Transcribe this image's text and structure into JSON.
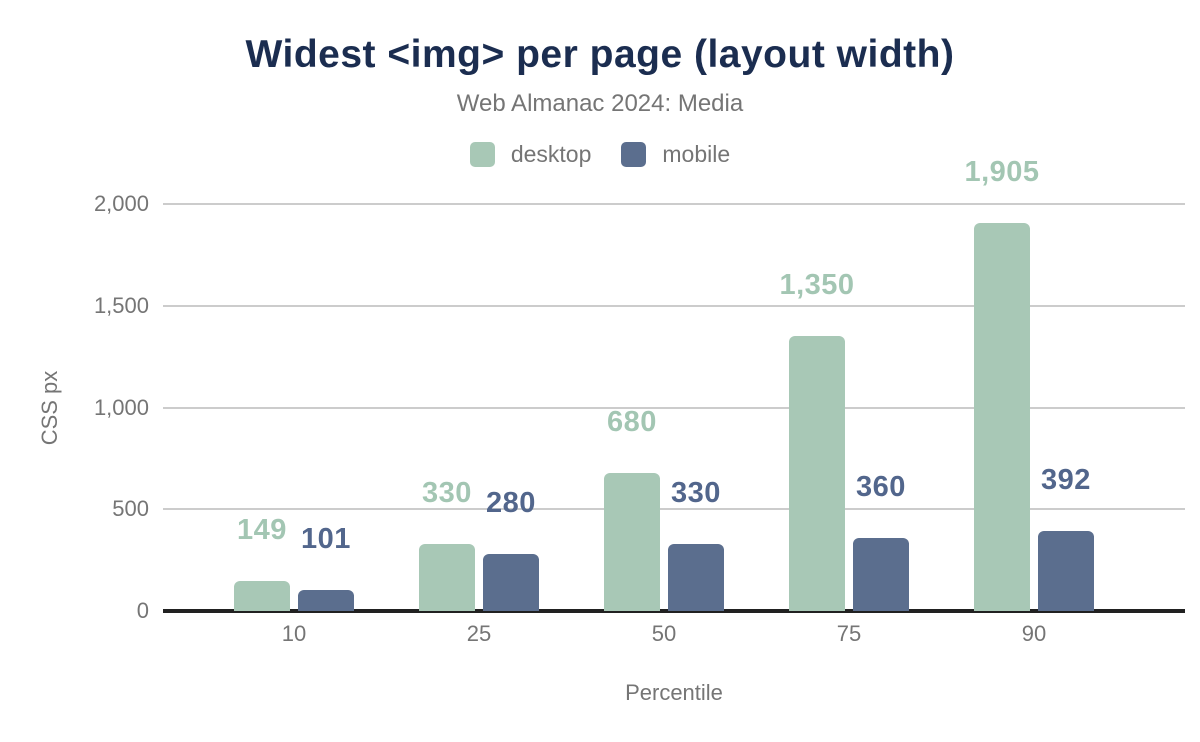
{
  "title": "Widest <img> per page (layout width)",
  "subtitle": "Web Almanac 2024: Media",
  "legend": [
    {
      "label": "desktop",
      "color": "#a8c8b6"
    },
    {
      "label": "mobile",
      "color": "#5b6e8e"
    }
  ],
  "chart_data": {
    "type": "bar",
    "title": "Widest <img> per page (layout width)",
    "subtitle": "Web Almanac 2024: Media",
    "categories": [
      "10",
      "25",
      "50",
      "75",
      "90"
    ],
    "series": [
      {
        "name": "desktop",
        "color": "#a8c8b6",
        "label_color": "#a3c6b3",
        "values": [
          149,
          330,
          680,
          1350,
          1905
        ],
        "labels": [
          "149",
          "330",
          "680",
          "1,350",
          "1,905"
        ]
      },
      {
        "name": "mobile",
        "color": "#5b6e8e",
        "label_color": "#52668c",
        "values": [
          101,
          280,
          330,
          360,
          392
        ],
        "labels": [
          "101",
          "280",
          "330",
          "360",
          "392"
        ]
      }
    ],
    "xlabel": "Percentile",
    "ylabel": "CSS px",
    "ylim": [
      0,
      2000
    ],
    "yticks": [
      0,
      500,
      1000,
      1500,
      2000
    ],
    "ytick_labels": [
      "0",
      "500",
      "1,000",
      "1,500",
      "2,000"
    ],
    "grid": true,
    "legend_position": "top"
  },
  "colors": {
    "title": "#1b2d50",
    "subtitle": "#757575",
    "axis_text": "#757575",
    "gridline": "#cccccc",
    "baseline": "#212121",
    "background": "#ffffff"
  }
}
